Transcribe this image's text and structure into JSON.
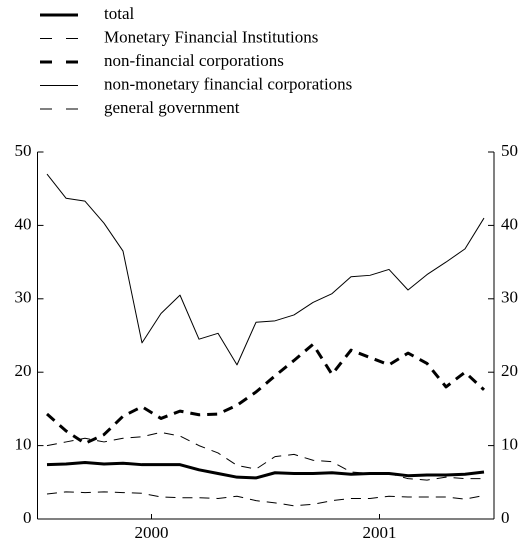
{
  "chart_data": {
    "type": "line",
    "categories": [
      null,
      null,
      null,
      null,
      null,
      "2000",
      null,
      null,
      null,
      null,
      null,
      null,
      null,
      null,
      null,
      null,
      null,
      "2001",
      null,
      null,
      null,
      null,
      null,
      null
    ],
    "series": [
      {
        "name": "total",
        "color": "#000000",
        "width": 3,
        "dash": "none",
        "values": [
          7.4,
          7.5,
          7.7,
          7.5,
          7.6,
          7.4,
          7.4,
          7.4,
          6.7,
          6.2,
          5.7,
          5.6,
          6.3,
          6.2,
          6.2,
          6.3,
          6.1,
          6.2,
          6.2,
          5.9,
          6,
          6,
          6.1,
          6.4
        ]
      },
      {
        "name": "Monetary Financial Institutions",
        "color": "#000000",
        "width": 1,
        "dash": "10 7",
        "values": [
          10,
          10.5,
          11,
          10.5,
          11,
          11.2,
          11.8,
          11.3,
          10,
          9,
          7.3,
          6.8,
          8.5,
          8.8,
          8,
          7.8,
          6.4,
          6.2,
          6.2,
          5.5,
          5.3,
          5.7,
          5.5,
          5.5
        ]
      },
      {
        "name": "non-financial corporations",
        "color": "#000000",
        "width": 3,
        "dash": "10 7",
        "values": [
          14.3,
          12,
          10.3,
          11.5,
          14,
          15.3,
          13.7,
          14.7,
          14.2,
          14.3,
          15.5,
          17.3,
          19.5,
          21.6,
          23.8,
          19.7,
          23,
          22,
          21,
          22.6,
          21.2,
          18,
          20,
          17.6
        ]
      },
      {
        "name": "non-monetary financial corporations",
        "color": "#000000",
        "width": 1,
        "dash": "none",
        "values": [
          47,
          43.7,
          43.3,
          40.3,
          36.5,
          24,
          28,
          30.5,
          24.5,
          25.3,
          21,
          26.8,
          27,
          27.8,
          29.5,
          30.7,
          33,
          33.2,
          34,
          31.2,
          33.3,
          35,
          36.8,
          41
        ]
      },
      {
        "name": "general government",
        "color": "#000000",
        "width": 1,
        "dash": "10 7",
        "values": [
          3.4,
          3.7,
          3.6,
          3.7,
          3.6,
          3.5,
          3,
          2.9,
          2.9,
          2.8,
          3.1,
          2.5,
          2.2,
          1.8,
          2,
          2.5,
          2.8,
          2.8,
          3.1,
          3,
          3,
          3,
          2.7,
          3.2
        ]
      }
    ],
    "ylim": [
      0,
      50
    ],
    "yticks": [
      0,
      10,
      20,
      30,
      40,
      50
    ]
  }
}
